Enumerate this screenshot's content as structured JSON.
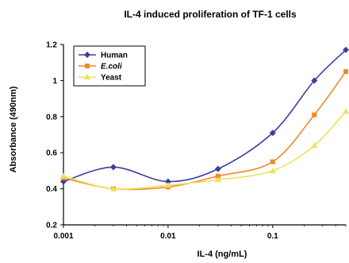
{
  "chart_data": {
    "type": "line",
    "title": "IL-4 induced proliferation of TF-1 cells",
    "xlabel": "IL-4 (ng/mL)",
    "ylabel": "Absorbance (490nm)",
    "x_scale": "log",
    "xlim": [
      0.001,
      0.5
    ],
    "ylim": [
      0.2,
      1.2
    ],
    "x_ticks": [
      "0.001",
      "0.01",
      "0.1"
    ],
    "y_ticks": [
      "0.2",
      "0.4",
      "0.6",
      "0.8",
      "1",
      "1.2"
    ],
    "grid": false,
    "legend_position": "top-left",
    "x": [
      0.001,
      0.003,
      0.01,
      0.03,
      0.1,
      0.25,
      0.5
    ],
    "series": [
      {
        "name": "Human",
        "color": "#3b3f9f",
        "marker": "diamond",
        "values": [
          0.44,
          0.52,
          0.44,
          0.51,
          0.71,
          1.0,
          1.17
        ]
      },
      {
        "name": "E.coli",
        "color": "#f08a28",
        "marker": "square",
        "values": [
          0.46,
          0.4,
          0.41,
          0.47,
          0.55,
          0.81,
          1.05
        ]
      },
      {
        "name": "Yeast",
        "color": "#efe15a",
        "marker": "triangle",
        "values": [
          0.47,
          0.4,
          0.42,
          0.45,
          0.5,
          0.64,
          0.83
        ]
      }
    ]
  }
}
